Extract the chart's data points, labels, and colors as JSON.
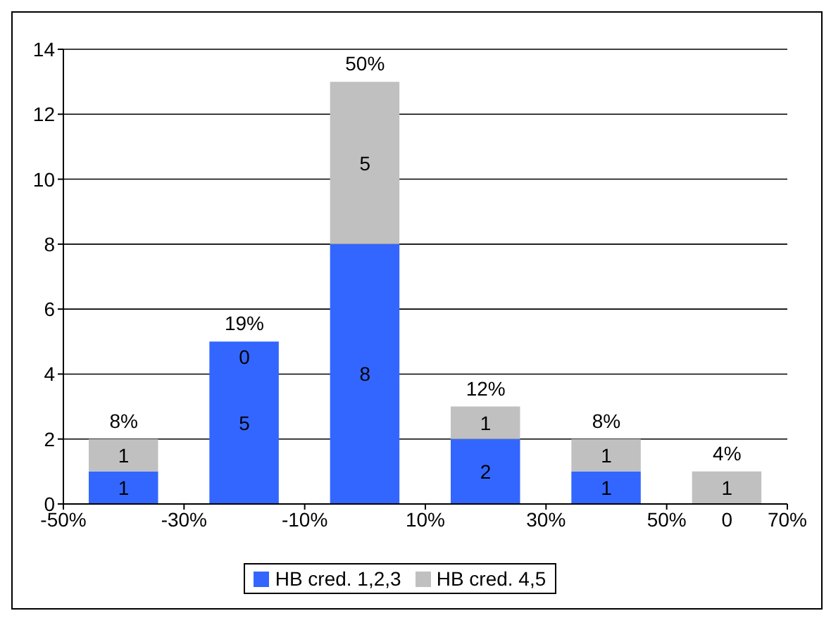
{
  "chart_data": {
    "type": "bar",
    "stacked": true,
    "x": [
      -40,
      -20,
      0,
      20,
      40,
      60
    ],
    "series": [
      {
        "name": "HB cred. 1,2,3",
        "color": "#3366ff",
        "values": [
          1,
          5,
          8,
          2,
          1,
          0
        ]
      },
      {
        "name": "HB cred. 4,5",
        "color": "#c0c0c0",
        "values": [
          1,
          0,
          5,
          1,
          1,
          1
        ]
      }
    ],
    "xlim": [
      -50,
      70
    ],
    "xticks": [
      {
        "value": -50,
        "label": "-50%"
      },
      {
        "value": -30,
        "label": "-30%"
      },
      {
        "value": -10,
        "label": "-10%"
      },
      {
        "value": 10,
        "label": "10%"
      },
      {
        "value": 30,
        "label": "30%"
      },
      {
        "value": 50,
        "label": "50%"
      },
      {
        "value": 70,
        "label": "70%"
      }
    ],
    "ylim": [
      0,
      14
    ],
    "yticks": [
      0,
      2,
      4,
      6,
      8,
      10,
      12,
      14
    ],
    "data_labels": true,
    "annotations": [
      {
        "text": "8%",
        "x": -40,
        "y": 2
      },
      {
        "text": "19%",
        "x": -20,
        "y": 5
      },
      {
        "text": "50%",
        "x": 0,
        "y": 13
      },
      {
        "text": "12%",
        "x": 20,
        "y": 3
      },
      {
        "text": "8%",
        "x": 40,
        "y": 2
      },
      {
        "text": "4%",
        "x": 60,
        "y": 1
      }
    ],
    "grid": "y",
    "legend": "bottom"
  }
}
